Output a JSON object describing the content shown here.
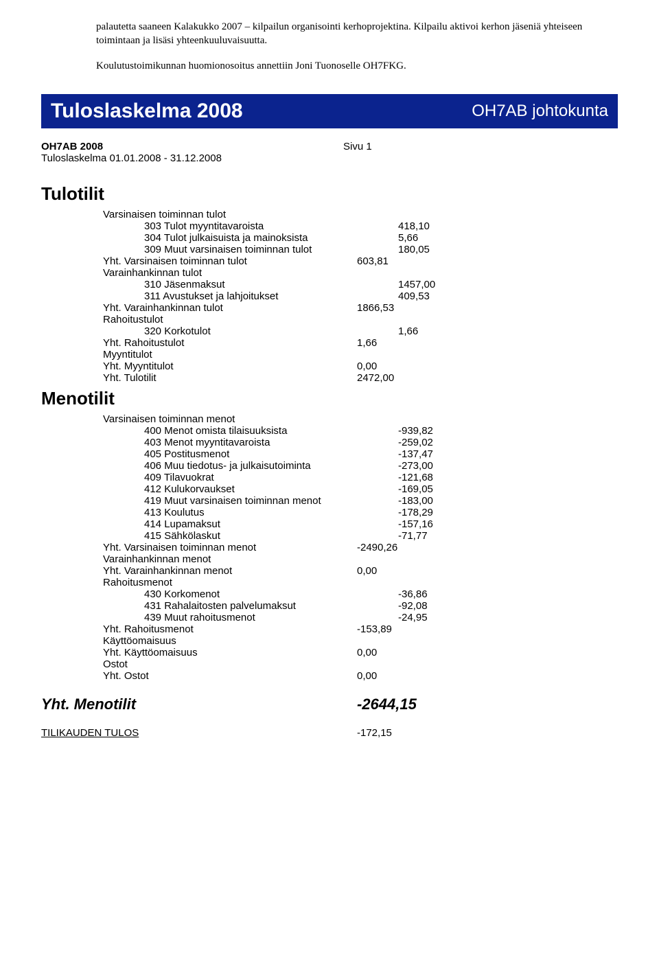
{
  "intro": {
    "p1": "palautetta saaneen Kalakukko 2007 – kilpailun organisointi kerhoprojektina. Kilpailu aktivoi kerhon jäseniä yhteiseen toimintaan ja lisäsi yhteenkuuluvaisuutta.",
    "p2": "Koulutustoimikunnan huomionosoitus annettiin Joni Tuonoselle OH7FKG."
  },
  "banner": {
    "left": "Tuloslaskelma 2008",
    "right": "OH7AB johtokunta",
    "bg": "#0b238e",
    "text_color": "#ffffff"
  },
  "meta": {
    "heading": "OH7AB 2008",
    "page": "Sivu 1",
    "subline": "Tuloslaskelma 01.01.2008 - 31.12.2008"
  },
  "tulotilit": {
    "title": "Tulotilit",
    "groups": [
      {
        "label": "Varsinaisen toiminnan tulot",
        "items": [
          {
            "label": "303 Tulot myyntitavaroista",
            "amount": "418,10"
          },
          {
            "label": "304 Tulot julkaisuista ja mainoksista",
            "amount": "5,66"
          },
          {
            "label": "309 Muut varsinaisen toiminnan tulot",
            "amount": "180,05"
          }
        ],
        "sum": {
          "label": "Yht. Varsinaisen toiminnan tulot",
          "amount": "603,81"
        }
      },
      {
        "label": "Varainhankinnan tulot",
        "items": [
          {
            "label": "310 Jäsenmaksut",
            "amount": "1457,00"
          },
          {
            "label": "311 Avustukset ja lahjoitukset",
            "amount": "409,53"
          }
        ],
        "sum": {
          "label": "Yht. Varainhankinnan tulot",
          "amount": "1866,53"
        }
      },
      {
        "label": "Rahoitustulot",
        "items": [
          {
            "label": "320 Korkotulot",
            "amount": "1,66"
          }
        ],
        "sum": {
          "label": "Yht. Rahoitustulot",
          "amount": "1,66"
        }
      },
      {
        "label": "Myyntitulot",
        "items": [],
        "sum": {
          "label": "Yht. Myyntitulot",
          "amount": "0,00"
        }
      }
    ],
    "total": {
      "label": "Yht. Tulotilit",
      "amount": "2472,00"
    }
  },
  "menotilit": {
    "title": "Menotilit",
    "groups": [
      {
        "label": "Varsinaisen toiminnan menot",
        "items": [
          {
            "label": "400 Menot omista tilaisuuksista",
            "amount": "-939,82"
          },
          {
            "label": "403 Menot myyntitavaroista",
            "amount": "-259,02"
          },
          {
            "label": "405 Postitusmenot",
            "amount": "-137,47"
          },
          {
            "label": "406 Muu tiedotus- ja julkaisutoiminta",
            "amount": "-273,00"
          },
          {
            "label": "409 Tilavuokrat",
            "amount": "-121,68"
          },
          {
            "label": "412 Kulukorvaukset",
            "amount": "-169,05"
          },
          {
            "label": "419 Muut varsinaisen toiminnan menot",
            "amount": "-183,00"
          },
          {
            "label": "413 Koulutus",
            "amount": "-178,29"
          },
          {
            "label": "414 Lupamaksut",
            "amount": "-157,16"
          },
          {
            "label": "415 Sähkölaskut",
            "amount": "-71,77"
          }
        ],
        "sum": {
          "label": "Yht. Varsinaisen toiminnan menot",
          "amount": "-2490,26"
        }
      },
      {
        "label": "Varainhankinnan menot",
        "items": [],
        "sum": {
          "label": "Yht. Varainhankinnan menot",
          "amount": "0,00"
        }
      },
      {
        "label": "Rahoitusmenot",
        "items": [
          {
            "label": "430 Korkomenot",
            "amount": "-36,86"
          },
          {
            "label": "431 Rahalaitosten palvelumaksut",
            "amount": "-92,08"
          },
          {
            "label": "439 Muut rahoitusmenot",
            "amount": "-24,95"
          }
        ],
        "sum": {
          "label": "Yht. Rahoitusmenot",
          "amount": "-153,89"
        }
      },
      {
        "label": "Käyttöomaisuus",
        "items": [],
        "sum": {
          "label": "Yht. Käyttöomaisuus",
          "amount": "0,00"
        }
      },
      {
        "label": "Ostot",
        "items": [],
        "sum": {
          "label": "Yht. Ostot",
          "amount": "0,00"
        }
      }
    ]
  },
  "grand_total": {
    "label": "Yht. Menotilit",
    "amount": "-2644,15"
  },
  "result": {
    "label": "TILIKAUDEN TULOS",
    "amount": "-172,15"
  }
}
